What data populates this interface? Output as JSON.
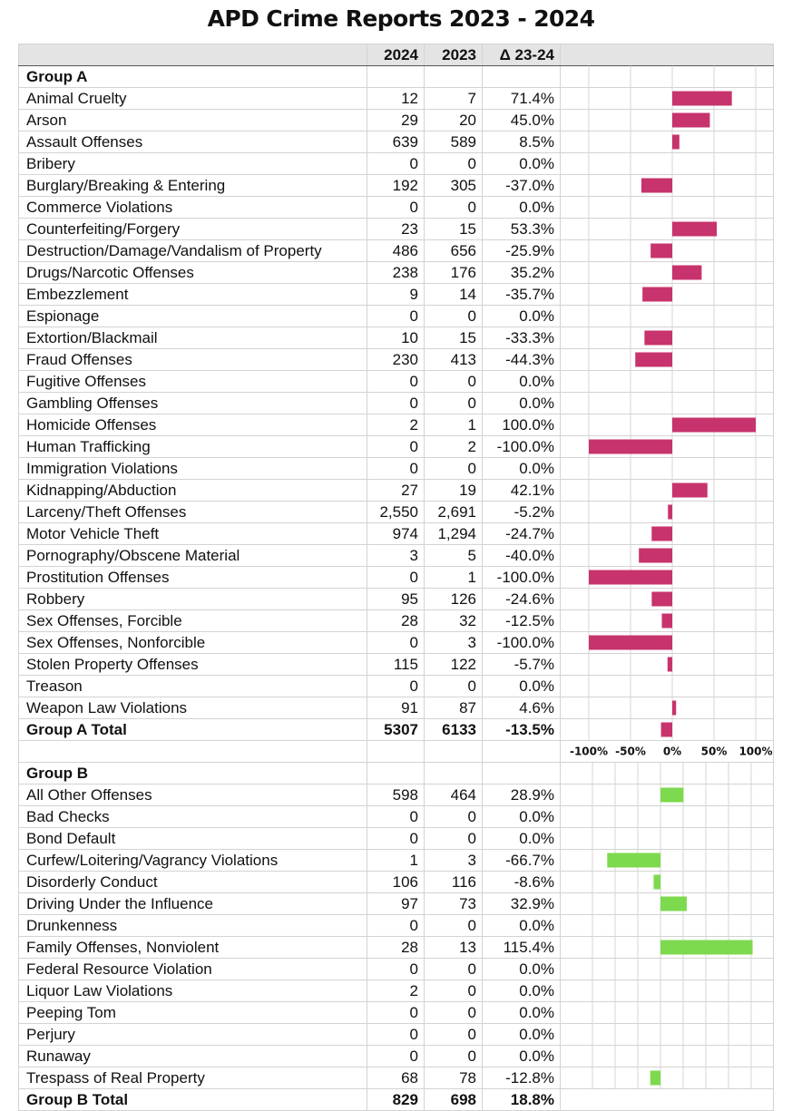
{
  "title": "APD Crime Reports 2023 - 2024",
  "headers": {
    "name": "",
    "y2024": "2024",
    "y2023": "2023",
    "delta": "Δ 23-24"
  },
  "groups": [
    {
      "label": "Group A",
      "color": "#c7336c",
      "rows": [
        {
          "name": "Animal Cruelty",
          "y2024": "12",
          "y2023": "7",
          "delta": "71.4%"
        },
        {
          "name": "Arson",
          "y2024": "29",
          "y2023": "20",
          "delta": "45.0%"
        },
        {
          "name": "Assault Offenses",
          "y2024": "639",
          "y2023": "589",
          "delta": "8.5%"
        },
        {
          "name": "Bribery",
          "y2024": "0",
          "y2023": "0",
          "delta": "0.0%"
        },
        {
          "name": "Burglary/Breaking & Entering",
          "y2024": "192",
          "y2023": "305",
          "delta": "-37.0%"
        },
        {
          "name": "Commerce Violations",
          "y2024": "0",
          "y2023": "0",
          "delta": "0.0%"
        },
        {
          "name": "Counterfeiting/Forgery",
          "y2024": "23",
          "y2023": "15",
          "delta": "53.3%"
        },
        {
          "name": "Destruction/Damage/Vandalism of Property",
          "y2024": "486",
          "y2023": "656",
          "delta": "-25.9%"
        },
        {
          "name": "Drugs/Narcotic Offenses",
          "y2024": "238",
          "y2023": "176",
          "delta": "35.2%"
        },
        {
          "name": "Embezzlement",
          "y2024": "9",
          "y2023": "14",
          "delta": "-35.7%"
        },
        {
          "name": "Espionage",
          "y2024": "0",
          "y2023": "0",
          "delta": "0.0%"
        },
        {
          "name": "Extortion/Blackmail",
          "y2024": "10",
          "y2023": "15",
          "delta": "-33.3%"
        },
        {
          "name": "Fraud Offenses",
          "y2024": "230",
          "y2023": "413",
          "delta": "-44.3%"
        },
        {
          "name": "Fugitive Offenses",
          "y2024": "0",
          "y2023": "0",
          "delta": "0.0%"
        },
        {
          "name": "Gambling Offenses",
          "y2024": "0",
          "y2023": "0",
          "delta": "0.0%"
        },
        {
          "name": "Homicide Offenses",
          "y2024": "2",
          "y2023": "1",
          "delta": "100.0%"
        },
        {
          "name": "Human Trafficking",
          "y2024": "0",
          "y2023": "2",
          "delta": "-100.0%"
        },
        {
          "name": "Immigration Violations",
          "y2024": "0",
          "y2023": "0",
          "delta": "0.0%"
        },
        {
          "name": "Kidnapping/Abduction",
          "y2024": "27",
          "y2023": "19",
          "delta": "42.1%"
        },
        {
          "name": "Larceny/Theft Offenses",
          "y2024": "2,550",
          "y2023": "2,691",
          "delta": "-5.2%"
        },
        {
          "name": "Motor Vehicle Theft",
          "y2024": "974",
          "y2023": "1,294",
          "delta": "-24.7%"
        },
        {
          "name": "Pornography/Obscene Material",
          "y2024": "3",
          "y2023": "5",
          "delta": "-40.0%"
        },
        {
          "name": "Prostitution Offenses",
          "y2024": "0",
          "y2023": "1",
          "delta": "-100.0%"
        },
        {
          "name": "Robbery",
          "y2024": "95",
          "y2023": "126",
          "delta": "-24.6%"
        },
        {
          "name": "Sex Offenses, Forcible",
          "y2024": "28",
          "y2023": "32",
          "delta": "-12.5%"
        },
        {
          "name": "Sex Offenses, Nonforcible",
          "y2024": "0",
          "y2023": "3",
          "delta": "-100.0%"
        },
        {
          "name": "Stolen Property Offenses",
          "y2024": "115",
          "y2023": "122",
          "delta": "-5.7%"
        },
        {
          "name": "Treason",
          "y2024": "0",
          "y2023": "0",
          "delta": "0.0%"
        },
        {
          "name": "Weapon Law Violations",
          "y2024": "91",
          "y2023": "87",
          "delta": "4.6%"
        }
      ],
      "total": {
        "name": "Group A Total",
        "y2024": "5307",
        "y2023": "6133",
        "delta": "-13.5%"
      }
    },
    {
      "label": "Group B",
      "color": "#7dd94e",
      "rows": [
        {
          "name": "All Other Offenses",
          "y2024": "598",
          "y2023": "464",
          "delta": "28.9%"
        },
        {
          "name": "Bad Checks",
          "y2024": "0",
          "y2023": "0",
          "delta": "0.0%"
        },
        {
          "name": "Bond Default",
          "y2024": "0",
          "y2023": "0",
          "delta": "0.0%"
        },
        {
          "name": "Curfew/Loitering/Vagrancy Violations",
          "y2024": "1",
          "y2023": "3",
          "delta": "-66.7%"
        },
        {
          "name": "Disorderly Conduct",
          "y2024": "106",
          "y2023": "116",
          "delta": "-8.6%"
        },
        {
          "name": "Driving Under the Influence",
          "y2024": "97",
          "y2023": "73",
          "delta": "32.9%"
        },
        {
          "name": "Drunkenness",
          "y2024": "0",
          "y2023": "0",
          "delta": "0.0%"
        },
        {
          "name": "Family Offenses, Nonviolent",
          "y2024": "28",
          "y2023": "13",
          "delta": "115.4%"
        },
        {
          "name": "Federal Resource Violation",
          "y2024": "0",
          "y2023": "0",
          "delta": "0.0%"
        },
        {
          "name": "Liquor Law Violations",
          "y2024": "2",
          "y2023": "0",
          "delta": "0.0%"
        },
        {
          "name": "Peeping Tom",
          "y2024": "0",
          "y2023": "0",
          "delta": "0.0%"
        },
        {
          "name": "Perjury",
          "y2024": "0",
          "y2023": "0",
          "delta": "0.0%"
        },
        {
          "name": "Runaway",
          "y2024": "0",
          "y2023": "0",
          "delta": "0.0%"
        },
        {
          "name": "Trespass of Real Property",
          "y2024": "68",
          "y2023": "78",
          "delta": "-12.8%"
        }
      ],
      "total": {
        "name": "Group B Total",
        "y2024": "829",
        "y2023": "698",
        "delta": "18.8%"
      }
    }
  ],
  "chart_data": [
    {
      "type": "bar",
      "orientation": "horizontal",
      "categories": [
        "Animal Cruelty",
        "Arson",
        "Assault Offenses",
        "Bribery",
        "Burglary/Breaking & Entering",
        "Commerce Violations",
        "Counterfeiting/Forgery",
        "Destruction/Damage/Vandalism of Property",
        "Drugs/Narcotic Offenses",
        "Embezzlement",
        "Espionage",
        "Extortion/Blackmail",
        "Fraud Offenses",
        "Fugitive Offenses",
        "Gambling Offenses",
        "Homicide Offenses",
        "Human Trafficking",
        "Immigration Violations",
        "Kidnapping/Abduction",
        "Larceny/Theft Offenses",
        "Motor Vehicle Theft",
        "Pornography/Obscene Material",
        "Prostitution Offenses",
        "Robbery",
        "Sex Offenses, Forcible",
        "Sex Offenses, Nonforcible",
        "Stolen Property Offenses",
        "Treason",
        "Weapon Law Violations",
        "Group A Total"
      ],
      "values": [
        71.4,
        45.0,
        8.5,
        0,
        -37.0,
        0,
        53.3,
        -25.9,
        35.2,
        -35.7,
        0,
        -33.3,
        -44.3,
        0,
        0,
        100.0,
        -100.0,
        0,
        42.1,
        -5.2,
        -24.7,
        -40.0,
        -100.0,
        -24.6,
        -12.5,
        -100.0,
        -5.7,
        0,
        4.6,
        -13.5
      ],
      "xlim": [
        -100,
        100
      ],
      "ticks": [
        "-100%",
        "-50%",
        "0%",
        "50%",
        "100%"
      ],
      "color": "#c7336c"
    },
    {
      "type": "bar",
      "orientation": "horizontal",
      "categories": [
        "All Other Offenses",
        "Bad Checks",
        "Bond Default",
        "Curfew/Loitering/Vagrancy Violations",
        "Disorderly Conduct",
        "Driving Under the Influence",
        "Drunkenness",
        "Family Offenses, Nonviolent",
        "Federal Resource Violation",
        "Liquor Law Violations",
        "Peeping Tom",
        "Perjury",
        "Runaway",
        "Trespass of Real Property",
        "Group B Total"
      ],
      "values": [
        28.9,
        0,
        0,
        -66.7,
        -8.6,
        32.9,
        0,
        115.4,
        0,
        0,
        0,
        0,
        0,
        -12.8,
        18.8
      ],
      "color": "#7dd94e"
    }
  ]
}
